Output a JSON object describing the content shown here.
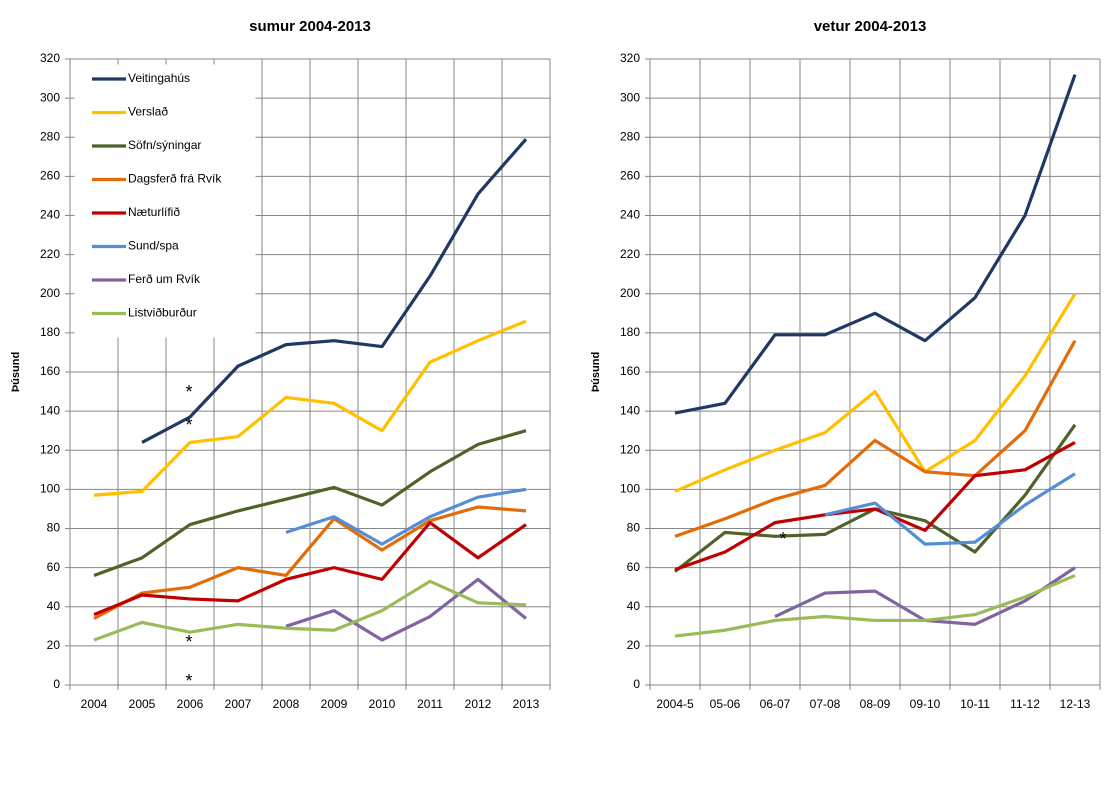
{
  "chart_data": [
    {
      "type": "line",
      "title": "sumur 2004-2013",
      "y_label": "Þúsund",
      "legend": "upper left",
      "grid": true,
      "categories": [
        "2004",
        "2005",
        "2006",
        "2007",
        "2008",
        "2009",
        "2010",
        "2011",
        "2012",
        "2013"
      ],
      "ylim": [
        0,
        320
      ],
      "yticks": [
        0,
        20,
        40,
        60,
        80,
        100,
        120,
        140,
        160,
        180,
        200,
        220,
        240,
        260,
        280,
        300,
        320
      ],
      "annotations": [
        "*",
        "*",
        "*",
        "*"
      ],
      "series": [
        {
          "name": "Veitingahús",
          "color": "#1f3864",
          "values": [
            null,
            124,
            137,
            163,
            174,
            176,
            173,
            209,
            251,
            279
          ]
        },
        {
          "name": "Verslað",
          "color": "#ffc000",
          "values": [
            97,
            99,
            124,
            127,
            147,
            144,
            130,
            165,
            176,
            186
          ]
        },
        {
          "name": "Söfn/sýningar",
          "color": "#4f6228",
          "values": [
            56,
            65,
            82,
            89,
            95,
            101,
            92,
            109,
            123,
            130
          ]
        },
        {
          "name": "Dagsferð frá Rvík",
          "color": "#e36c09",
          "values": [
            34,
            47,
            50,
            60,
            56,
            85,
            69,
            84,
            91,
            89
          ]
        },
        {
          "name": "Næturlífið",
          "color": "#c00000",
          "values": [
            36,
            46,
            44,
            43,
            54,
            60,
            54,
            83,
            65,
            82
          ]
        },
        {
          "name": "Sund/spa",
          "color": "#558ed5",
          "values": [
            null,
            null,
            null,
            null,
            78,
            86,
            72,
            86,
            96,
            100
          ]
        },
        {
          "name": "Ferð um Rvík",
          "color": "#8064a2",
          "values": [
            null,
            null,
            null,
            null,
            30,
            38,
            23,
            35,
            54,
            34
          ]
        },
        {
          "name": "Listviðburður",
          "color": "#9bbb59",
          "values": [
            23,
            32,
            27,
            31,
            29,
            28,
            38,
            53,
            42,
            41
          ]
        }
      ]
    },
    {
      "type": "line",
      "title": "vetur 2004-2013",
      "y_label": "Þúsund",
      "grid": true,
      "categories": [
        "2004-5",
        "05-06",
        "06-07",
        "07-08",
        "08-09",
        "09-10",
        "10-11",
        "11-12",
        "12-13"
      ],
      "ylim": [
        0,
        320
      ],
      "yticks": [
        0,
        20,
        40,
        60,
        80,
        100,
        120,
        140,
        160,
        180,
        200,
        220,
        240,
        260,
        280,
        300,
        320
      ],
      "annotations": [
        "*"
      ],
      "series": [
        {
          "color": "#1f3864",
          "values": [
            139,
            144,
            179,
            179,
            190,
            176,
            198,
            240,
            312
          ]
        },
        {
          "color": "#ffc000",
          "values": [
            99,
            110,
            120,
            129,
            150,
            109,
            125,
            158,
            200
          ]
        },
        {
          "color": "#4f6228",
          "values": [
            58,
            78,
            76,
            77,
            90,
            84,
            68,
            97,
            133
          ]
        },
        {
          "color": "#e36c09",
          "values": [
            76,
            85,
            95,
            102,
            125,
            109,
            107,
            130,
            176
          ]
        },
        {
          "color": "#c00000",
          "values": [
            59,
            68,
            83,
            87,
            90,
            79,
            107,
            110,
            124
          ]
        },
        {
          "color": "#558ed5",
          "values": [
            null,
            null,
            null,
            87,
            93,
            72,
            73,
            92,
            108
          ]
        },
        {
          "color": "#8064a2",
          "values": [
            null,
            null,
            35,
            47,
            48,
            33,
            31,
            43,
            60
          ]
        },
        {
          "color": "#9bbb59",
          "values": [
            25,
            28,
            33,
            35,
            33,
            33,
            36,
            45,
            56
          ]
        }
      ]
    }
  ]
}
